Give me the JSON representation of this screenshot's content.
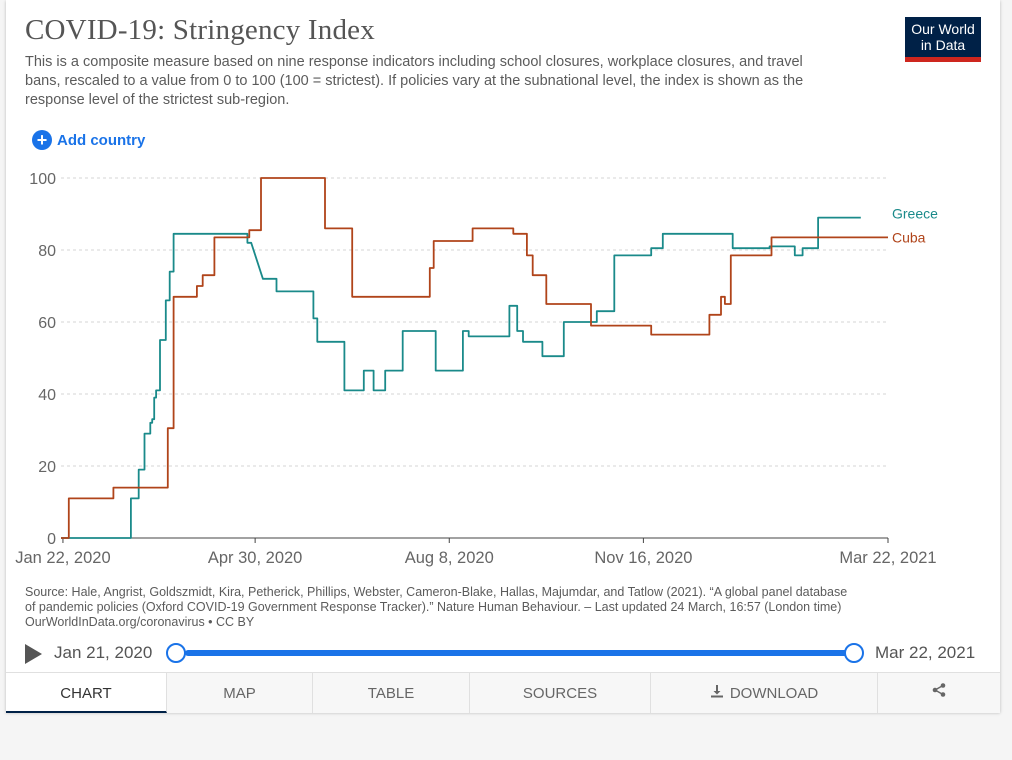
{
  "header": {
    "title": "COVID-19: Stringency Index",
    "subtitle": "This is a composite measure based on nine response indicators including school closures, workplace closures, and travel bans, rescaled to a value from 0 to 100 (100 = strictest). If policies vary at the subnational level, the index is shown as the response level of the strictest sub-region.",
    "logo_line1": "Our World",
    "logo_line2": "in Data"
  },
  "add_country_label": "Add country",
  "chart_data": {
    "type": "line",
    "title": "COVID-19: Stringency Index",
    "ylim": [
      0,
      100
    ],
    "yticks": [
      0,
      20,
      40,
      60,
      80,
      100
    ],
    "x_ticks": [
      {
        "date": "2020-01-22",
        "label": "Jan 22, 2020"
      },
      {
        "date": "2020-04-30",
        "label": "Apr 30, 2020"
      },
      {
        "date": "2020-08-08",
        "label": "Aug 8, 2020"
      },
      {
        "date": "2020-11-16",
        "label": "Nov 16, 2020"
      },
      {
        "date": "2021-03-22",
        "label": "Mar 22, 2021"
      }
    ],
    "xlim": [
      "2020-01-21",
      "2021-03-22"
    ],
    "grid": true,
    "series": [
      {
        "name": "Greece",
        "color": "#1a8a8a",
        "points": [
          [
            "2020-01-21",
            0
          ],
          [
            "2020-02-26",
            0
          ],
          [
            "2020-02-26",
            11
          ],
          [
            "2020-03-01",
            11
          ],
          [
            "2020-03-01",
            19
          ],
          [
            "2020-03-04",
            19
          ],
          [
            "2020-03-04",
            29
          ],
          [
            "2020-03-07",
            29
          ],
          [
            "2020-03-07",
            32
          ],
          [
            "2020-03-08",
            32
          ],
          [
            "2020-03-08",
            33
          ],
          [
            "2020-03-09",
            33
          ],
          [
            "2020-03-09",
            39
          ],
          [
            "2020-03-10",
            39
          ],
          [
            "2020-03-10",
            41
          ],
          [
            "2020-03-12",
            41
          ],
          [
            "2020-03-12",
            55
          ],
          [
            "2020-03-15",
            55
          ],
          [
            "2020-03-15",
            66
          ],
          [
            "2020-03-17",
            66
          ],
          [
            "2020-03-17",
            74
          ],
          [
            "2020-03-19",
            74
          ],
          [
            "2020-03-19",
            84.5
          ],
          [
            "2020-04-26",
            84.5
          ],
          [
            "2020-04-26",
            82
          ],
          [
            "2020-04-28",
            82
          ],
          [
            "2020-05-04",
            72
          ],
          [
            "2020-05-11",
            72
          ],
          [
            "2020-05-11",
            68.5
          ],
          [
            "2020-05-30",
            68.5
          ],
          [
            "2020-05-30",
            61
          ],
          [
            "2020-06-01",
            61
          ],
          [
            "2020-06-01",
            54.5
          ],
          [
            "2020-06-15",
            54.5
          ],
          [
            "2020-06-15",
            41
          ],
          [
            "2020-06-25",
            41
          ],
          [
            "2020-06-25",
            46.5
          ],
          [
            "2020-06-30",
            46.5
          ],
          [
            "2020-06-30",
            41
          ],
          [
            "2020-07-06",
            41
          ],
          [
            "2020-07-06",
            46.5
          ],
          [
            "2020-07-15",
            46.5
          ],
          [
            "2020-07-15",
            57.5
          ],
          [
            "2020-08-01",
            57.5
          ],
          [
            "2020-08-01",
            46.5
          ],
          [
            "2020-08-15",
            46.5
          ],
          [
            "2020-08-15",
            57.5
          ],
          [
            "2020-08-18",
            57.5
          ],
          [
            "2020-08-18",
            56
          ],
          [
            "2020-09-08",
            56
          ],
          [
            "2020-09-08",
            64.5
          ],
          [
            "2020-09-12",
            64.5
          ],
          [
            "2020-09-12",
            57.5
          ],
          [
            "2020-09-15",
            57.5
          ],
          [
            "2020-09-15",
            54.5
          ],
          [
            "2020-09-25",
            54.5
          ],
          [
            "2020-09-25",
            50.5
          ],
          [
            "2020-10-06",
            50.5
          ],
          [
            "2020-10-06",
            60
          ],
          [
            "2020-10-23",
            60
          ],
          [
            "2020-10-23",
            63
          ],
          [
            "2020-11-01",
            63
          ],
          [
            "2020-11-01",
            78.5
          ],
          [
            "2020-11-20",
            78.5
          ],
          [
            "2020-11-20",
            80.5
          ],
          [
            "2020-11-26",
            80.5
          ],
          [
            "2020-11-26",
            84.5
          ],
          [
            "2021-01-01",
            84.5
          ],
          [
            "2021-01-01",
            80.5
          ],
          [
            "2021-01-20",
            80.5
          ],
          [
            "2021-01-20",
            81
          ],
          [
            "2021-02-02",
            81
          ],
          [
            "2021-02-02",
            78.5
          ],
          [
            "2021-02-06",
            78.5
          ],
          [
            "2021-02-06",
            80.5
          ],
          [
            "2021-02-14",
            80.5
          ],
          [
            "2021-02-14",
            89
          ],
          [
            "2021-03-08",
            89
          ]
        ]
      },
      {
        "name": "Cuba",
        "color": "#b0441a",
        "points": [
          [
            "2020-01-21",
            0
          ],
          [
            "2020-01-25",
            0
          ],
          [
            "2020-01-25",
            11
          ],
          [
            "2020-02-17",
            11
          ],
          [
            "2020-02-17",
            14
          ],
          [
            "2020-03-16",
            14
          ],
          [
            "2020-03-16",
            30.5
          ],
          [
            "2020-03-19",
            30.5
          ],
          [
            "2020-03-19",
            67
          ],
          [
            "2020-03-31",
            67
          ],
          [
            "2020-03-31",
            70
          ],
          [
            "2020-04-03",
            70
          ],
          [
            "2020-04-03",
            73
          ],
          [
            "2020-04-09",
            73
          ],
          [
            "2020-04-09",
            83.5
          ],
          [
            "2020-04-27",
            83.5
          ],
          [
            "2020-04-27",
            85.5
          ],
          [
            "2020-05-03",
            85.5
          ],
          [
            "2020-05-03",
            100
          ],
          [
            "2020-06-05",
            100
          ],
          [
            "2020-06-05",
            86
          ],
          [
            "2020-06-19",
            86
          ],
          [
            "2020-06-19",
            67
          ],
          [
            "2020-07-29",
            67
          ],
          [
            "2020-07-29",
            75
          ],
          [
            "2020-07-31",
            75
          ],
          [
            "2020-07-31",
            82.5
          ],
          [
            "2020-08-20",
            82.5
          ],
          [
            "2020-08-20",
            86
          ],
          [
            "2020-09-10",
            86
          ],
          [
            "2020-09-10",
            84.5
          ],
          [
            "2020-09-17",
            84.5
          ],
          [
            "2020-09-17",
            78.5
          ],
          [
            "2020-09-20",
            78.5
          ],
          [
            "2020-09-20",
            73
          ],
          [
            "2020-09-27",
            73
          ],
          [
            "2020-09-27",
            65
          ],
          [
            "2020-10-20",
            65
          ],
          [
            "2020-10-20",
            59
          ],
          [
            "2020-11-20",
            59
          ],
          [
            "2020-11-20",
            56.5
          ],
          [
            "2020-12-20",
            56.5
          ],
          [
            "2020-12-20",
            62
          ],
          [
            "2020-12-26",
            62
          ],
          [
            "2020-12-26",
            67
          ],
          [
            "2020-12-28",
            67
          ],
          [
            "2020-12-28",
            65
          ],
          [
            "2020-12-31",
            65
          ],
          [
            "2020-12-31",
            78.5
          ],
          [
            "2021-01-21",
            78.5
          ],
          [
            "2021-01-21",
            83.5
          ],
          [
            "2021-03-22",
            83.5
          ]
        ]
      }
    ]
  },
  "source": {
    "line1": "Source: Hale, Angrist, Goldszmidt, Kira, Petherick, Phillips, Webster, Cameron-Blake, Hallas, Majumdar, and Tatlow (2021). “A global panel database",
    "line2": "of pandemic policies (Oxford COVID-19 Government Response Tracker).” Nature Human Behaviour. – Last updated 24 March, 16:57 (London time)",
    "line3": "OurWorldInData.org/coronavirus • CC BY"
  },
  "timeline": {
    "start_label": "Jan 21, 2020",
    "end_label": "Mar 22, 2021"
  },
  "tabs": {
    "chart": "CHART",
    "map": "MAP",
    "table": "TABLE",
    "sources": "SOURCES",
    "download": "DOWNLOAD"
  },
  "colors": {
    "accent": "#1a73e8",
    "brand": "#002147",
    "brand_red": "#ce261e"
  }
}
